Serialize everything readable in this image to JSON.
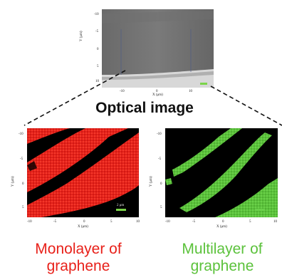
{
  "optical": {
    "title": "Optical image",
    "y_label": "Y (μm)",
    "x_label": "X (μm)",
    "y_ticks": [
      "-10",
      "-5",
      "0",
      "5",
      "10"
    ],
    "x_ticks": [
      "-10",
      "0",
      "10"
    ]
  },
  "mono": {
    "y_label": "Y (μm)",
    "x_label": "X (μm)",
    "y_ticks": [
      "-10",
      "-5",
      "0",
      "5"
    ],
    "x_ticks": [
      "-10",
      "-5",
      "0",
      "5",
      "10"
    ],
    "scale_bar": "2 μm",
    "caption_line1": "Monolayer of",
    "caption_line2": "graphene",
    "color": "#e8211a"
  },
  "multi": {
    "y_label": "Y (μm)",
    "x_label": "X (μm)",
    "y_ticks": [
      "-10",
      "-5",
      "0",
      "5"
    ],
    "x_ticks": [
      "-10",
      "-5",
      "0",
      "5",
      "10"
    ],
    "caption_line1": "Multilayer of",
    "caption_line2": "graphene",
    "color": "#5cc23c"
  }
}
